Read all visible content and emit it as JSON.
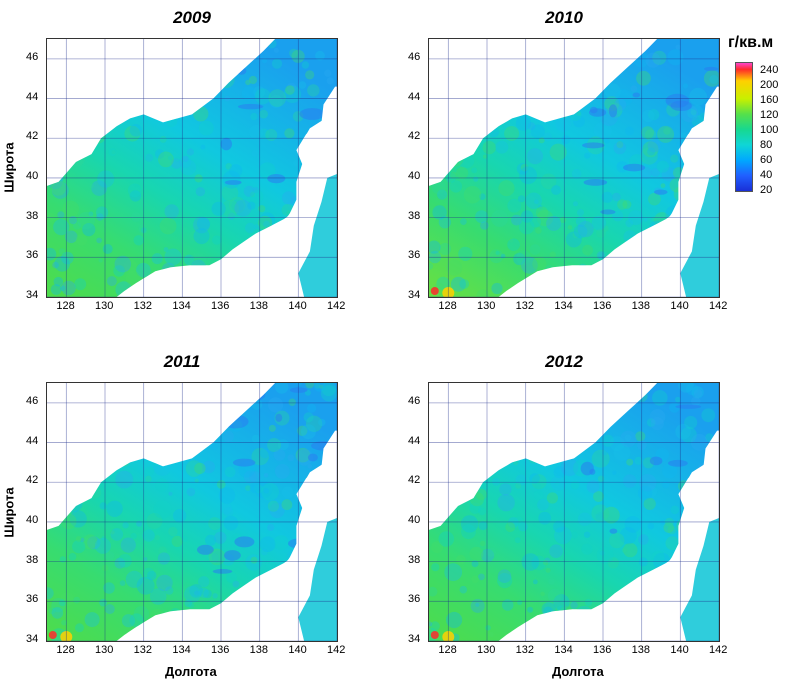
{
  "axes": {
    "y_title": "Широта",
    "x_title": "Долгота",
    "lat_ticks": [
      "46",
      "44",
      "42",
      "40",
      "38",
      "36",
      "34"
    ],
    "lon_ticks": [
      "128",
      "130",
      "132",
      "134",
      "136",
      "138",
      "140",
      "142"
    ]
  },
  "legend": {
    "unit": "г/кв.м",
    "ticks": [
      "240",
      "200",
      "160",
      "120",
      "100",
      "80",
      "60",
      "40",
      "20"
    ],
    "colors": {
      "240": "#ff2a2a",
      "200": "#ffd000",
      "160": "#a8f000",
      "120": "#3ee060",
      "100": "#17d890",
      "80": "#10d6d0",
      "60": "#00b4ff",
      "40": "#2468ff",
      "20": "#1a2fd6"
    }
  },
  "panels": [
    {
      "title": "2009",
      "year": 2009
    },
    {
      "title": "2010",
      "year": 2010
    },
    {
      "title": "2011",
      "year": 2011
    },
    {
      "title": "2012",
      "year": 2012
    }
  ],
  "extent": {
    "lon": [
      127,
      142
    ],
    "lat": [
      34,
      47
    ]
  },
  "land_color": "#ffffff",
  "grid_color": "#1a2b8a"
}
